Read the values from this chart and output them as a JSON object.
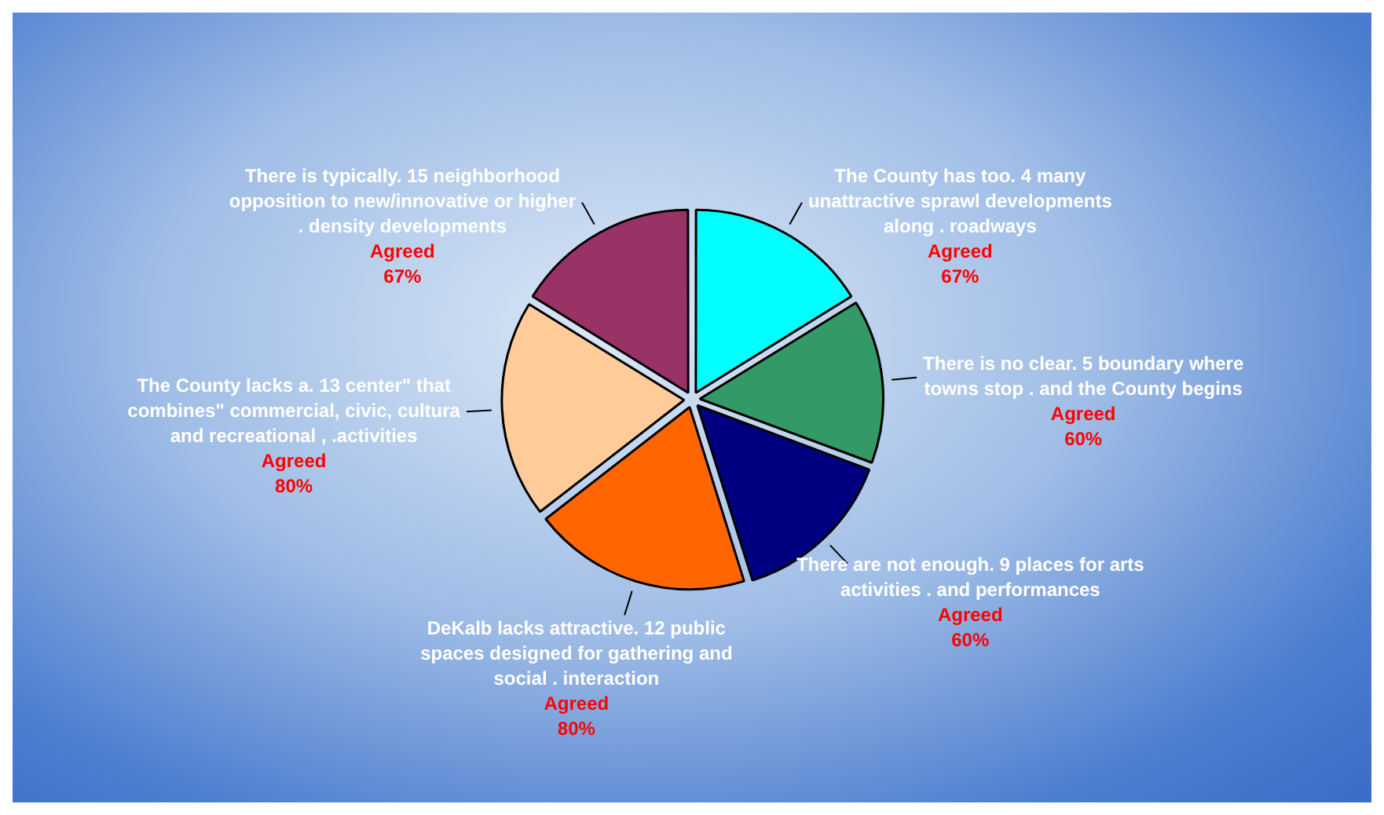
{
  "chart_data": {
    "type": "pie",
    "categories": [
      "The County has too. 4 many unattractive sprawl developments along . roadways",
      "There is no clear. 5 boundary where towns stop . and the County begins",
      "There are not enough. 9 places for arts activities . and performances",
      "DeKalb lacks attractive. 12 public spaces designed for gathering and social . interaction",
      "The County lacks a. 13 center\" that combines\" commercial, civic, cultura and recreational , .activities",
      "There is typically. 15 neighborhood opposition to new/innovative or higher . density developments"
    ],
    "values": [
      67,
      60,
      60,
      80,
      80,
      67
    ],
    "colors": [
      "#00ffff",
      "#339966",
      "#000080",
      "#ff6600",
      "#ffcc99",
      "#993366"
    ],
    "value_labels": [
      "Agreed 67%",
      "Agreed 60%",
      "Agreed 60%",
      "Agreed 80%",
      "Agreed 80%",
      "Agreed 67%"
    ],
    "legend": false
  }
}
